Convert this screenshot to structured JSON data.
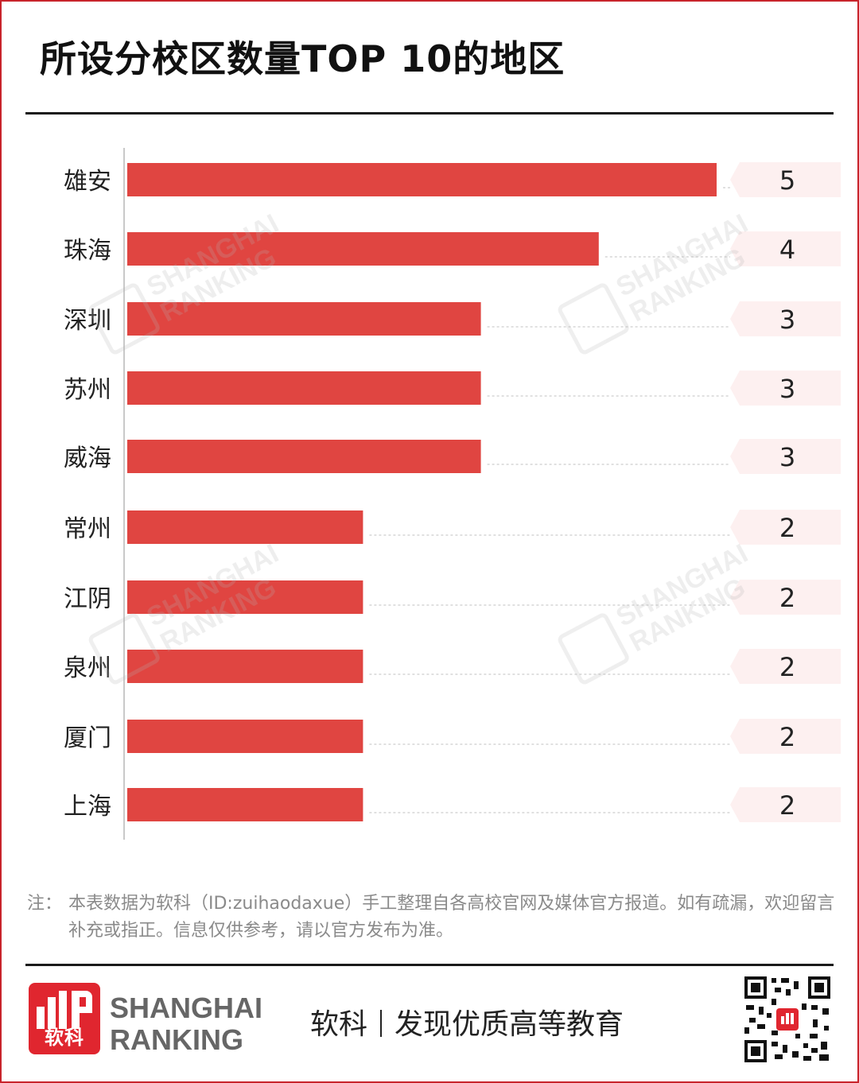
{
  "title": "所设分校区数量TOP 10的地区",
  "chart_data": {
    "type": "bar",
    "orientation": "horizontal",
    "categories": [
      "雄安",
      "珠海",
      "深圳",
      "苏州",
      "威海",
      "常州",
      "江阴",
      "泉州",
      "厦门",
      "上海"
    ],
    "values": [
      5,
      4,
      3,
      3,
      3,
      2,
      2,
      2,
      2,
      2
    ],
    "xlim": [
      0,
      5
    ],
    "grid": false,
    "bar_color": "#e04541",
    "value_label_bg": "#fdf0f0"
  },
  "note": {
    "label": "注：",
    "text": "本表数据为软科（ID:zuihaodaxue）手工整理自各高校官网及媒体官方报道。如有疏漏，欢迎留言补充或指正。信息仅供参考，请以官方发布为准。"
  },
  "footer": {
    "logo_cn": "软科",
    "brand_line1": "SHANGHAI",
    "brand_line2": "RANKING",
    "slogan_left": "软科",
    "slogan_right": "发现优质高等教育"
  },
  "watermark": {
    "line1": "SHANGHAI",
    "line2": "RANKING"
  },
  "colors": {
    "brand_red": "#e0262f",
    "frame": "#c8242b"
  }
}
